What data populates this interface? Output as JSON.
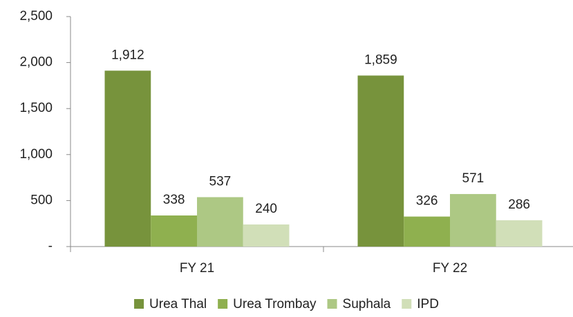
{
  "chart_data": {
    "type": "bar",
    "categories": [
      "FY 21",
      "FY 22"
    ],
    "series": [
      {
        "name": "Urea Thal",
        "color": "#77933c",
        "values": [
          1912,
          1859
        ],
        "value_labels": [
          "1,912",
          "1,859"
        ]
      },
      {
        "name": "Urea Trombay",
        "color": "#8fb04f",
        "values": [
          338,
          326
        ]
      },
      {
        "name": "Suphala",
        "color": "#adc884",
        "values": [
          537,
          571
        ]
      },
      {
        "name": "IPD",
        "color": "#d1dfb8",
        "values": [
          240,
          286
        ]
      }
    ],
    "ylim": [
      0,
      2500
    ],
    "yticks": [
      {
        "value": 0,
        "label": "-"
      },
      500,
      {
        "value": 1000,
        "label": "1,000"
      },
      {
        "value": 1500,
        "label": "1,500"
      },
      {
        "value": 2000,
        "label": "2,000"
      },
      {
        "value": 2500,
        "label": "2,500"
      }
    ],
    "grid": false,
    "legend": "bottom"
  }
}
